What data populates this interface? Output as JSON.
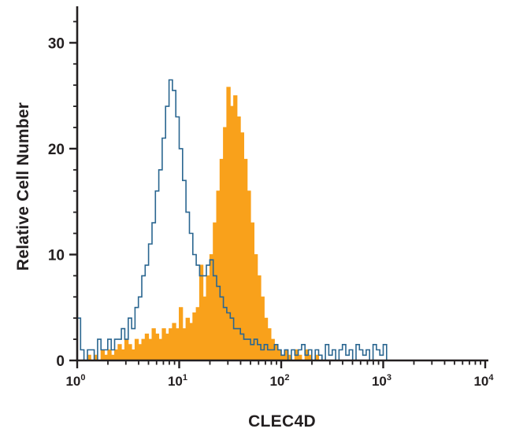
{
  "chart_data": {
    "type": "histogram",
    "title": "",
    "xlabel": "CLEC4D",
    "ylabel": "Relative Cell Number",
    "x_scale": "log10",
    "x_range_log": [
      0,
      4
    ],
    "ylim": [
      0,
      33
    ],
    "y_major_ticks": [
      0,
      10,
      20,
      30
    ],
    "y_minor_step": 2,
    "x_major_exponents": [
      0,
      1,
      2,
      3,
      4
    ],
    "x_tick_base": "10",
    "bins_per_decade": 30,
    "grid": false,
    "legend": "none",
    "axis_color": "#231f20",
    "series": [
      {
        "name": "filled-clec4d-stained",
        "style": "filled",
        "color": "#F9A11B",
        "peak_x": 30,
        "peak_y": 25.8,
        "values": [
          0,
          0,
          0,
          0.5,
          0,
          0.5,
          0,
          1,
          0.5,
          1,
          0.5,
          1,
          1.5,
          1,
          2,
          1.5,
          1,
          2,
          1.5,
          2,
          2.5,
          2,
          3,
          2.5,
          2,
          3,
          2.5,
          3,
          3.5,
          3,
          5,
          3,
          4,
          3.5,
          4.5,
          5,
          9,
          6,
          8,
          10,
          13,
          16,
          19,
          22,
          25.8,
          24,
          25,
          23,
          21.5,
          19,
          16,
          13,
          10,
          8,
          6,
          4,
          3,
          2,
          1.5,
          1,
          0.5,
          1,
          0.5,
          0,
          1,
          0.5,
          0,
          1,
          0.5,
          0,
          0.5,
          0,
          0,
          0,
          0,
          0,
          0,
          0,
          0,
          0,
          0,
          0,
          0,
          0,
          0,
          0,
          0,
          0,
          0,
          0,
          0,
          0,
          0,
          0,
          0,
          0,
          0,
          0,
          0,
          0,
          0,
          0,
          0,
          0,
          0,
          0,
          0,
          0,
          0,
          0,
          0,
          0,
          0,
          0,
          0,
          0,
          0,
          0,
          0,
          0
        ]
      },
      {
        "name": "open-control",
        "style": "open",
        "color": "#2A6690",
        "peak_x": 8.5,
        "peak_y": 26.5,
        "values": [
          4,
          1,
          0,
          1,
          1,
          0,
          2,
          1,
          1,
          2,
          1,
          2,
          2,
          3,
          2,
          4,
          3,
          5,
          6,
          8,
          9,
          11,
          13,
          16,
          18,
          21,
          24,
          26.5,
          25.5,
          23,
          20,
          17,
          14,
          12,
          10,
          9,
          8,
          8,
          9,
          9.5,
          8,
          7,
          6,
          5,
          4.5,
          4,
          3,
          3,
          2.5,
          2,
          2,
          1.5,
          2,
          1.5,
          1,
          1.5,
          1,
          1,
          1.5,
          1,
          0.5,
          1,
          0,
          1,
          0.5,
          1,
          1.5,
          0.5,
          1,
          0,
          1,
          0.5,
          0,
          1.5,
          0.5,
          1,
          0,
          1,
          1.5,
          0.5,
          1,
          0,
          1.5,
          1,
          0.5,
          1,
          0,
          1.5,
          1,
          0.5,
          1.5,
          0,
          0,
          0,
          0,
          0,
          0,
          0,
          0,
          0,
          0,
          0,
          0,
          0,
          0,
          0,
          0,
          0,
          0,
          0,
          0,
          0,
          0,
          0,
          0,
          0,
          0,
          0,
          0,
          0
        ]
      }
    ]
  }
}
